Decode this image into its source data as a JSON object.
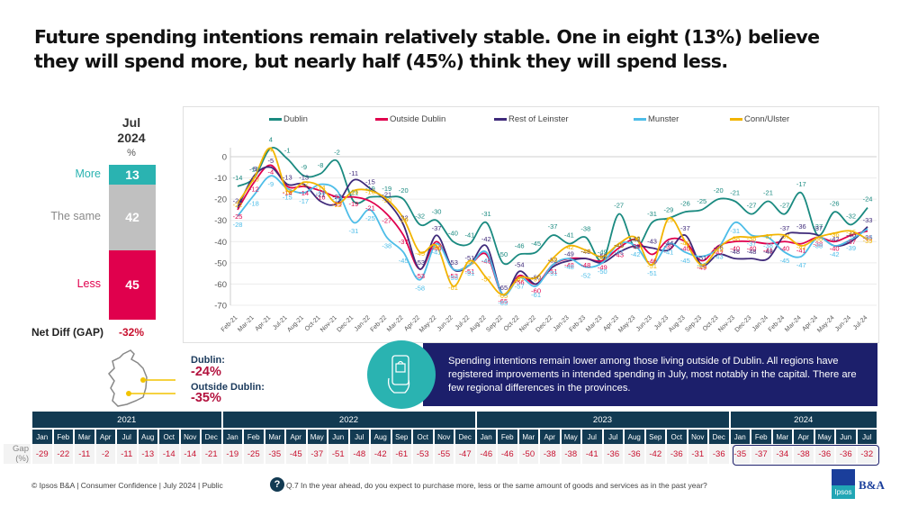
{
  "title": "Future spending intentions remain relatively stable. One in eight (13%) believe they will spend more, but nearly half (45%) think they will spend less.",
  "stack": {
    "period_line1": "Jul",
    "period_line2": "2024",
    "unit": "%",
    "segments": [
      {
        "label": "More",
        "value": 13,
        "color": "#2ab3b1",
        "label_color": "#2ab3b1"
      },
      {
        "label": "The same",
        "value": 42,
        "color": "#c0c0c0",
        "label_color": "#8a8a8a"
      },
      {
        "label": "Less",
        "value": 45,
        "color": "#e0004d",
        "label_color": "#e0004d"
      }
    ],
    "net_diff_label": "Net Diff (GAP)",
    "net_diff_value": "-32%"
  },
  "chart_data": {
    "type": "line",
    "title": "",
    "xlabel": "",
    "ylabel": "",
    "ylim": [
      -70,
      0
    ],
    "yticks": [
      0,
      -10,
      -20,
      -30,
      -40,
      -50,
      -60,
      -70
    ],
    "grid": true,
    "legend_position": "top",
    "categories": [
      "Feb-21",
      "Mar-21",
      "Apr-21",
      "Jul-21",
      "Aug-21",
      "Oct-21",
      "Nov-21",
      "Dec-21",
      "Jan-22",
      "Feb-22",
      "Mar-22",
      "Apr-22",
      "May-22",
      "Jun-22",
      "Jul-22",
      "Aug-22",
      "Sep-22",
      "Oct-22",
      "Nov-22",
      "Dec-22",
      "Jan-23",
      "Feb-23",
      "Mar-23",
      "Apr-23",
      "May-23",
      "Jun-23",
      "Jul-23",
      "Aug-23",
      "Sep-23",
      "Oct-23",
      "Nov-23",
      "Dec-23",
      "Jan-24",
      "Feb-24",
      "Mar-24",
      "Apr-24",
      "May-24",
      "Jun-24",
      "Jul-24"
    ],
    "series": [
      {
        "name": "Dublin",
        "color": "#1a8a80",
        "values": [
          -14,
          -10,
          4,
          -1,
          -9,
          -8,
          -2,
          -21,
          -19,
          -19,
          -20,
          -32,
          -30,
          -40,
          -41,
          -31,
          -50,
          -46,
          -45,
          -37,
          -41,
          -38,
          -49,
          -27,
          -43,
          -31,
          -29,
          -26,
          -25,
          -20,
          -21,
          -27,
          -21,
          -27,
          -17,
          -37,
          -26,
          -32,
          -24
        ]
      },
      {
        "name": "Outside Dublin",
        "color": "#e0004d",
        "values": [
          -25,
          -12,
          -4,
          -14,
          -14,
          -16,
          -19,
          -19,
          -21,
          -27,
          -37,
          -53,
          -40,
          -53,
          -51,
          -46,
          -65,
          -56,
          -60,
          -51,
          -48,
          -48,
          -49,
          -43,
          -39,
          -46,
          -39,
          -40,
          -49,
          -42,
          -40,
          -40,
          -41,
          -40,
          -41,
          -38,
          -40,
          -37,
          -35
        ]
      },
      {
        "name": "Rest of Leinster",
        "color": "#3f2a7a",
        "values": [
          -24,
          -9,
          -5,
          -13,
          -13,
          -21,
          -22,
          -11,
          -15,
          -21,
          -32,
          -53,
          -37,
          -53,
          -51,
          -42,
          -65,
          -54,
          -60,
          -52,
          -49,
          -48,
          -50,
          -45,
          -42,
          -43,
          -44,
          -37,
          -51,
          -46,
          -48,
          -48,
          -48,
          -37,
          -36,
          -37,
          -42,
          -40,
          -33
        ]
      },
      {
        "name": "Munster",
        "color": "#4dbde8",
        "values": [
          -28,
          -18,
          -9,
          -15,
          -17,
          -13,
          -16,
          -31,
          -25,
          -38,
          -45,
          -58,
          -41,
          -53,
          -51,
          -45,
          -65,
          -57,
          -61,
          -51,
          -48,
          -52,
          -50,
          -41,
          -42,
          -51,
          -41,
          -45,
          -47,
          -43,
          -31,
          -37,
          -38,
          -45,
          -47,
          -38,
          -42,
          -39,
          -34
        ]
      },
      {
        "name": "Conn/Ulster",
        "color": "#f2b400",
        "values": [
          -22,
          -10,
          4,
          -16,
          -12,
          -14,
          -22,
          -16,
          -16,
          -20,
          -29,
          -45,
          -42,
          -61,
          -49,
          -57,
          -65,
          -57,
          -57,
          -48,
          -42,
          -44,
          -47,
          -41,
          -38,
          -51,
          -29,
          -40,
          -51,
          -43,
          -38,
          -38,
          -37,
          -37,
          -42,
          -38,
          -36,
          -35,
          -39
        ]
      }
    ]
  },
  "callouts": [
    {
      "label": "Dublin:",
      "value": "-24%"
    },
    {
      "label": "Outside Dublin:",
      "value": "-35%"
    }
  ],
  "insight": {
    "icon": "phone-shopping-bag-icon",
    "text": "Spending intentions remain lower among those living outside of Dublin. All regions have registered improvements in intended spending in July, most notably in the capital. There are few regional differences in the provinces."
  },
  "gap_table": {
    "row_label": "Gap (%)",
    "years": [
      {
        "year": "2021",
        "months": [
          "Jan",
          "Feb",
          "Mar",
          "Apr",
          "Jul",
          "Aug",
          "Oct",
          "Nov",
          "Dec"
        ],
        "values": [
          "-29",
          "-22",
          "-11",
          "-2",
          "-11",
          "-13",
          "-14",
          "-14",
          "-21"
        ]
      },
      {
        "year": "2022",
        "months": [
          "Jan",
          "Feb",
          "Mar",
          "Apr",
          "May",
          "Jun",
          "Jul",
          "Aug",
          "Sep",
          "Oct",
          "Nov",
          "Dec"
        ],
        "values": [
          "-19",
          "-25",
          "-35",
          "-45",
          "-37",
          "-51",
          "-48",
          "-42",
          "-61",
          "-53",
          "-55",
          "-47"
        ]
      },
      {
        "year": "2023",
        "months": [
          "Jan",
          "Feb",
          "Mar",
          "Apr",
          "May",
          "Jul",
          "Jul",
          "Aug",
          "Sep",
          "Oct",
          "Nov",
          "Dec"
        ],
        "values": [
          "-46",
          "-46",
          "-50",
          "-38",
          "-38",
          "-41",
          "-36",
          "-36",
          "-42",
          "-36",
          "-31",
          "-36"
        ]
      },
      {
        "year": "2024",
        "months": [
          "Jan",
          "Feb",
          "Mar",
          "Apr",
          "May",
          "Jun",
          "Jul"
        ],
        "values": [
          "-35",
          "-37",
          "-34",
          "-38",
          "-36",
          "-36",
          "-32"
        ]
      }
    ]
  },
  "footer": {
    "left": "© Ipsos B&A | Consumer Confidence | July 2024 |  Public",
    "question_icon": "?",
    "question": "Q.7 In the year ahead, do you expect to purchase more, less or the same amount of goods and services as in the past year?",
    "logo_ipsos": "Ipsos",
    "logo_ba": "B&A"
  }
}
